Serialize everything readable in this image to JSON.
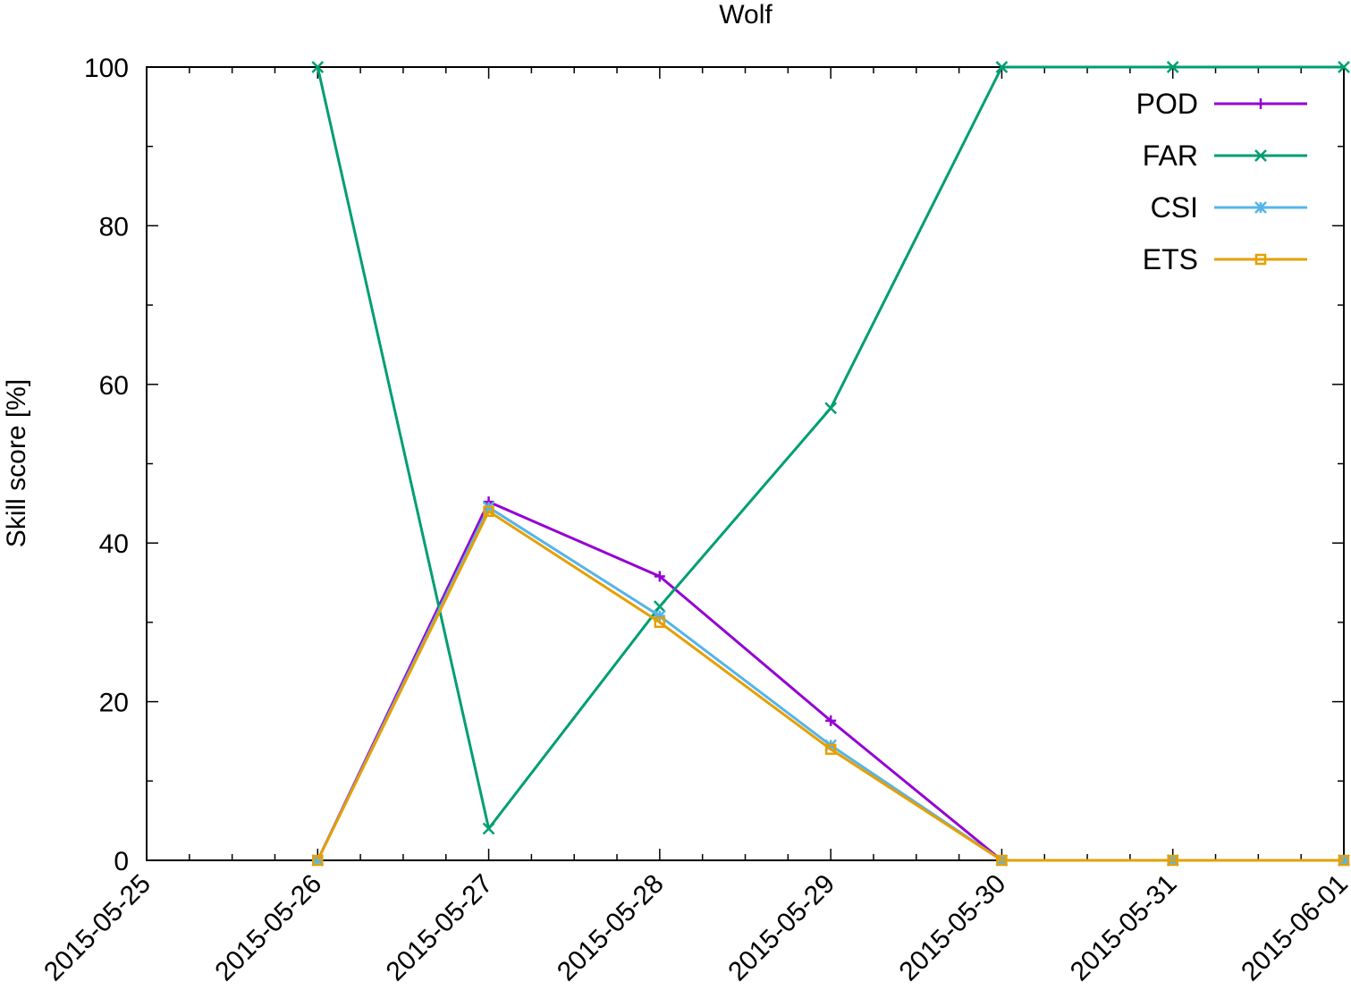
{
  "chart_data": {
    "type": "line",
    "title": "Wolf",
    "xlabel": "",
    "ylabel": "Skill score [%]",
    "ylim": [
      0,
      100
    ],
    "yticks": [
      0,
      20,
      40,
      60,
      80,
      100
    ],
    "xticks": [
      "2015-05-25",
      "2015-05-26",
      "2015-05-27",
      "2015-05-28",
      "2015-05-29",
      "2015-05-30",
      "2015-05-31",
      "2015-06-01"
    ],
    "grid": false,
    "legend_position": "top-right",
    "series": [
      {
        "name": "POD",
        "color": "#9400d3",
        "marker": "plus",
        "x": [
          "2015-05-26",
          "2015-05-27",
          "2015-05-28",
          "2015-05-29",
          "2015-05-30",
          "2015-05-31",
          "2015-06-01"
        ],
        "y": [
          0,
          45.2,
          35.8,
          17.6,
          0,
          0,
          0
        ]
      },
      {
        "name": "FAR",
        "color": "#009e73",
        "marker": "cross",
        "x": [
          "2015-05-26",
          "2015-05-27",
          "2015-05-28",
          "2015-05-29",
          "2015-05-30",
          "2015-05-31",
          "2015-06-01"
        ],
        "y": [
          100,
          4,
          32,
          57,
          100,
          100,
          100
        ]
      },
      {
        "name": "CSI",
        "color": "#56b4e9",
        "marker": "star",
        "x": [
          "2015-05-26",
          "2015-05-27",
          "2015-05-28",
          "2015-05-29",
          "2015-05-30",
          "2015-05-31",
          "2015-06-01"
        ],
        "y": [
          0,
          44.5,
          30.8,
          14.5,
          0,
          0,
          0
        ]
      },
      {
        "name": "ETS",
        "color": "#e69f00",
        "marker": "square",
        "x": [
          "2015-05-26",
          "2015-05-27",
          "2015-05-28",
          "2015-05-29",
          "2015-05-30",
          "2015-05-31",
          "2015-06-01"
        ],
        "y": [
          0,
          44,
          30,
          14,
          0,
          0,
          0
        ]
      }
    ]
  }
}
